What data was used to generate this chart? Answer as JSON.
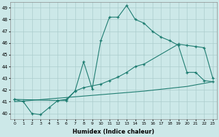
{
  "xlabel": "Humidex (Indice chaleur)",
  "bg_color": "#cce8e8",
  "grid_color": "#aacccc",
  "line_color": "#1a7a6e",
  "xlim": [
    -0.5,
    23.5
  ],
  "ylim": [
    39.5,
    49.5
  ],
  "xticks": [
    0,
    1,
    2,
    3,
    4,
    5,
    6,
    7,
    8,
    9,
    10,
    11,
    12,
    13,
    14,
    15,
    16,
    17,
    18,
    19,
    20,
    21,
    22,
    23
  ],
  "yticks": [
    40,
    41,
    42,
    43,
    44,
    45,
    46,
    47,
    48,
    49
  ],
  "series1_x": [
    0,
    1,
    2,
    3,
    4,
    5,
    6,
    7,
    8,
    9,
    10,
    11,
    12,
    13,
    14,
    15,
    16,
    17,
    18,
    19,
    20,
    21,
    22,
    23
  ],
  "series1_y": [
    41.2,
    41.0,
    40.0,
    39.9,
    40.5,
    41.1,
    41.1,
    41.9,
    44.4,
    42.1,
    46.2,
    48.2,
    48.2,
    49.2,
    48.0,
    47.7,
    47.0,
    46.5,
    46.2,
    45.8,
    43.5,
    43.5,
    42.8,
    42.7
  ],
  "series2_x": [
    0,
    5,
    6,
    7,
    8,
    10,
    11,
    12,
    13,
    14,
    15,
    19,
    20,
    21,
    22,
    23
  ],
  "series2_y": [
    41.2,
    41.1,
    41.2,
    41.9,
    42.2,
    42.5,
    42.8,
    43.1,
    43.5,
    44.0,
    44.2,
    45.9,
    45.8,
    45.7,
    45.6,
    43.0
  ],
  "series3_x": [
    0,
    5,
    10,
    15,
    20,
    23
  ],
  "series3_y": [
    41.0,
    41.3,
    41.6,
    41.9,
    42.3,
    42.7
  ]
}
